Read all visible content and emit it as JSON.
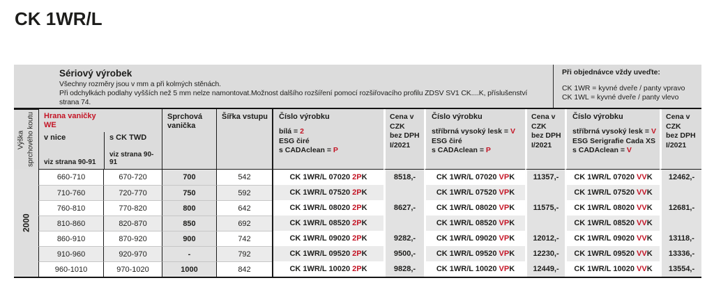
{
  "title": "CK 1WR/L",
  "colors": {
    "accent": "#c41425",
    "band": "#dcdcdc",
    "row_alt": "#ebebeb",
    "col_gray": "#e2e2e2"
  },
  "info": {
    "heading": "Sériový výrobek",
    "lines": [
      "Všechny rozměry jsou v mm a při kolmých stěnách.",
      "Při odchylkách podlahy vyšších než 5 mm nelze namontovat.Možnost dalšího rozšíření pomocí rozšiřovacího profilu ZDSV SV1 CK....K, příslušenství",
      "strana 74."
    ],
    "order": {
      "heading": "Při objednávce vždy uveďte:",
      "lines": [
        "CK 1WR = kyvné dveře / panty vpravo",
        "CK 1WL = kyvné dveře / panty vlevo"
      ]
    }
  },
  "columns": {
    "height_label": "Výška sprchového koutu",
    "hrana": {
      "title": "Hrana vaničky",
      "subtitle": "WE",
      "nice": "v nice",
      "twd": "s CK TWD",
      "viz": "viz strana 90-91"
    },
    "vanicka": "Sprchová vanička",
    "sirka": "Šířka vstupu",
    "cislo": "Číslo výrobku",
    "cena_lines": [
      "Cena v CZK",
      "bez DPH",
      "I/2021"
    ],
    "variants": [
      {
        "lines": [
          [
            {
              "t": "bílá = "
            },
            {
              "t": "2",
              "red": true
            }
          ],
          [
            {
              "t": "ESG čiré"
            }
          ],
          [
            {
              "t": "s CADAclean = "
            },
            {
              "t": "P",
              "red": true
            }
          ]
        ]
      },
      {
        "lines": [
          [
            {
              "t": "stříbrná vysoký lesk = "
            },
            {
              "t": "V",
              "red": true
            }
          ],
          [
            {
              "t": "ESG čiré"
            }
          ],
          [
            {
              "t": "s CADAclean = "
            },
            {
              "t": "P",
              "red": true
            }
          ]
        ]
      },
      {
        "lines": [
          [
            {
              "t": "stříbrná vysoký lesk = "
            },
            {
              "t": "V",
              "red": true
            }
          ],
          [
            {
              "t": "ESG Serigrafie Cada XS"
            }
          ],
          [
            {
              "t": "s CADAclean = "
            },
            {
              "t": "V",
              "red": true
            }
          ]
        ]
      }
    ]
  },
  "height_value": "2000",
  "rows": [
    {
      "v_nice": "660-710",
      "s_twd": "670-720",
      "vanicka": "700",
      "sirka": "542",
      "products": [
        {
          "base": "CK 1WR/L 07020",
          "red": "2P",
          "end": "K"
        },
        {
          "base": "CK 1WR/L 07020",
          "red": "VP",
          "end": "K"
        },
        {
          "base": "CK 1WR/L 07020",
          "red": "VV",
          "end": "K"
        }
      ],
      "prices": [
        "8518,-",
        "11357,-",
        "12462,-"
      ]
    },
    {
      "v_nice": "710-760",
      "s_twd": "720-770",
      "vanicka": "750",
      "sirka": "592",
      "products": [
        {
          "base": "CK 1WR/L 07520",
          "red": "2P",
          "end": "K"
        },
        {
          "base": "CK 1WR/L 07520",
          "red": "VP",
          "end": "K"
        },
        {
          "base": "CK 1WR/L 07520",
          "red": "VV",
          "end": "K"
        }
      ],
      "prices": [
        "",
        "",
        ""
      ]
    },
    {
      "v_nice": "760-810",
      "s_twd": "770-820",
      "vanicka": "800",
      "sirka": "642",
      "products": [
        {
          "base": "CK 1WR/L 08020",
          "red": "2P",
          "end": "K"
        },
        {
          "base": "CK 1WR/L 08020",
          "red": "VP",
          "end": "K"
        },
        {
          "base": "CK 1WR/L 08020",
          "red": "VV",
          "end": "K"
        }
      ],
      "prices": [
        "8627,-",
        "11575,-",
        "12681,-"
      ]
    },
    {
      "v_nice": "810-860",
      "s_twd": "820-870",
      "vanicka": "850",
      "sirka": "692",
      "products": [
        {
          "base": "CK 1WR/L 08520",
          "red": "2P",
          "end": "K"
        },
        {
          "base": "CK 1WR/L 08520",
          "red": "VP",
          "end": "K"
        },
        {
          "base": "CK 1WR/L 08520",
          "red": "VV",
          "end": "K"
        }
      ],
      "prices": [
        "",
        "",
        ""
      ]
    },
    {
      "v_nice": "860-910",
      "s_twd": "870-920",
      "vanicka": "900",
      "sirka": "742",
      "products": [
        {
          "base": "CK 1WR/L 09020",
          "red": "2P",
          "end": "K"
        },
        {
          "base": "CK 1WR/L 09020",
          "red": "VP",
          "end": "K"
        },
        {
          "base": "CK 1WR/L 09020",
          "red": "VV",
          "end": "K"
        }
      ],
      "prices": [
        "9282,-",
        "12012,-",
        "13118,-"
      ]
    },
    {
      "v_nice": "910-960",
      "s_twd": "920-970",
      "vanicka": "-",
      "sirka": "792",
      "products": [
        {
          "base": "CK 1WR/L 09520",
          "red": "2P",
          "end": "K"
        },
        {
          "base": "CK 1WR/L 09520",
          "red": "VP",
          "end": "K"
        },
        {
          "base": "CK 1WR/L 09520",
          "red": "VV",
          "end": "K"
        }
      ],
      "prices": [
        "9500,-",
        "12230,-",
        "13336,-"
      ]
    },
    {
      "v_nice": "960-1010",
      "s_twd": "970-1020",
      "vanicka": "1000",
      "sirka": "842",
      "products": [
        {
          "base": "CK 1WR/L 10020",
          "red": "2P",
          "end": "K"
        },
        {
          "base": "CK 1WR/L 10020",
          "red": "VP",
          "end": "K"
        },
        {
          "base": "CK 1WR/L 10020",
          "red": "VV",
          "end": "K"
        }
      ],
      "prices": [
        "9828,-",
        "12449,-",
        "13554,-"
      ]
    }
  ]
}
